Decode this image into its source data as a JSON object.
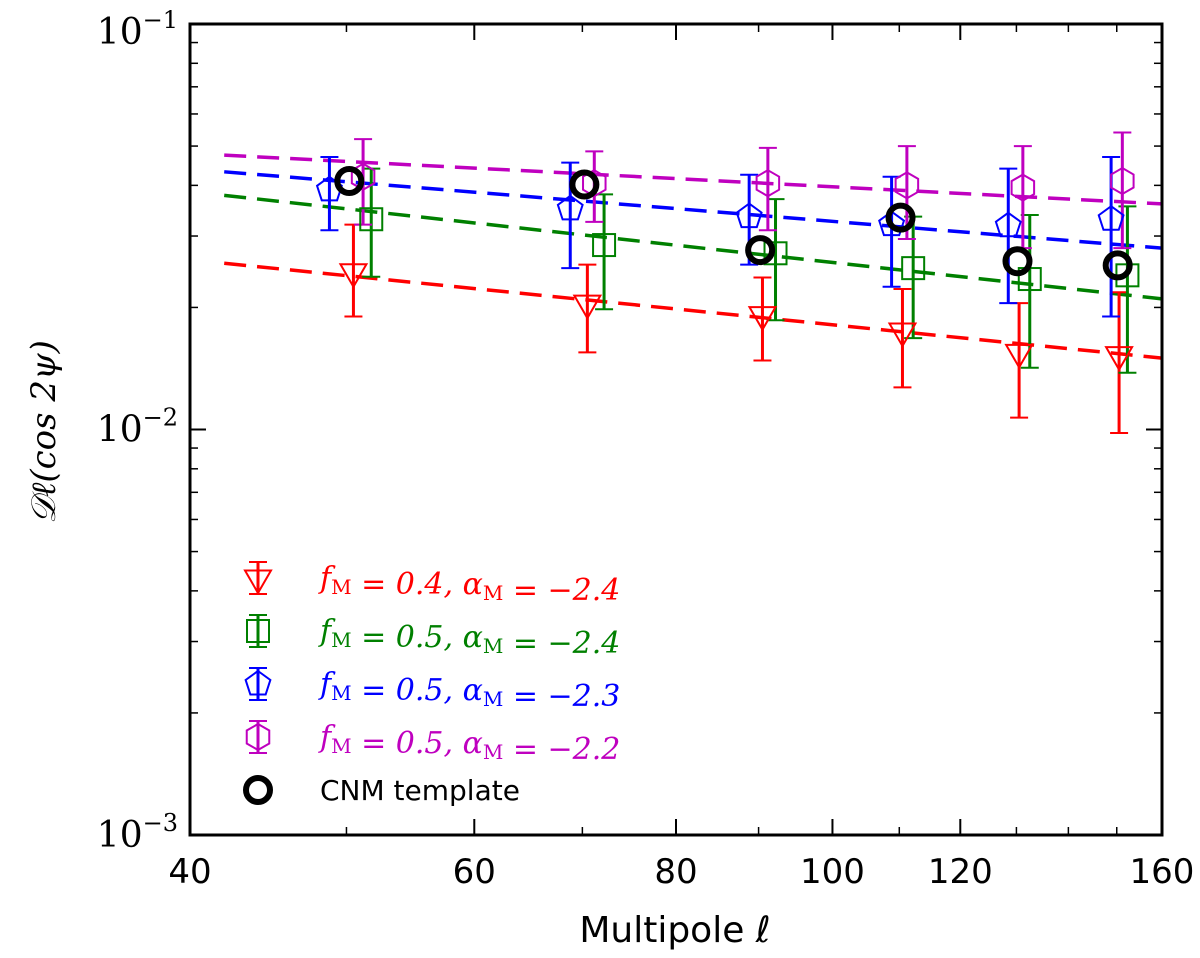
{
  "chart_data": {
    "type": "scatter",
    "title": "",
    "xlabel": "Multipole ℓ",
    "ylabel": "𝒟ℓ(cos 2ψ)",
    "xlim": [
      40,
      160
    ],
    "ylim": [
      0.001,
      0.1
    ],
    "yscale": "log",
    "xscale": "log",
    "grid": false,
    "legend_position": "lower-left",
    "x_ticks": [
      {
        "value": 40,
        "label": "40"
      },
      {
        "value": 60,
        "label": "60"
      },
      {
        "value": 80,
        "label": "80"
      },
      {
        "value": 100,
        "label": "100"
      },
      {
        "value": 120,
        "label": "120"
      },
      {
        "value": 160,
        "label": "160"
      }
    ],
    "y_ticks": [
      {
        "value": 0.001,
        "base": "10",
        "exp": "−3"
      },
      {
        "value": 0.01,
        "base": "10",
        "exp": "−2"
      },
      {
        "value": 0.1,
        "base": "10",
        "exp": "−1"
      }
    ],
    "series": [
      {
        "name": "f_M = 0.4, α_M = −2.4",
        "legend_main": "f",
        "legend_sub": "M",
        "legend_mid": " = 0.4, α",
        "legend_sub2": "M",
        "legend_end": " = −2.4",
        "color": "#ff0000",
        "marker": "triangle-down",
        "points": [
          {
            "x": 50.5,
            "y": 0.0245,
            "lo": 0.019,
            "hi": 0.032
          },
          {
            "x": 70.5,
            "y": 0.0205,
            "lo": 0.0155,
            "hi": 0.0255
          },
          {
            "x": 90.5,
            "y": 0.0192,
            "lo": 0.0148,
            "hi": 0.0237
          },
          {
            "x": 110.5,
            "y": 0.0175,
            "lo": 0.0127,
            "hi": 0.0222
          },
          {
            "x": 130.5,
            "y": 0.0155,
            "lo": 0.0107,
            "hi": 0.0205
          },
          {
            "x": 150.5,
            "y": 0.0153,
            "lo": 0.0098,
            "hi": 0.0218
          }
        ],
        "fit": {
          "x": [
            42,
            160
          ],
          "y": [
            0.0257,
            0.015
          ]
        }
      },
      {
        "name": "f_M = 0.5, α_M = −2.4",
        "legend_main": "f",
        "legend_sub": "M",
        "legend_mid": " = 0.5, α",
        "legend_sub2": "M",
        "legend_end": " = −2.4",
        "color": "#008000",
        "marker": "square",
        "points": [
          {
            "x": 51.8,
            "y": 0.033,
            "lo": 0.0238,
            "hi": 0.044
          },
          {
            "x": 72.2,
            "y": 0.0285,
            "lo": 0.0198,
            "hi": 0.038
          },
          {
            "x": 92.2,
            "y": 0.0272,
            "lo": 0.0186,
            "hi": 0.037
          },
          {
            "x": 112.2,
            "y": 0.025,
            "lo": 0.0168,
            "hi": 0.0335
          },
          {
            "x": 132.5,
            "y": 0.0235,
            "lo": 0.0142,
            "hi": 0.0338
          },
          {
            "x": 152.3,
            "y": 0.024,
            "lo": 0.0138,
            "hi": 0.0355
          }
        ],
        "fit": {
          "x": [
            42,
            160
          ],
          "y": [
            0.0378,
            0.021
          ]
        }
      },
      {
        "name": "f_M = 0.5, α_M = −2.3",
        "legend_main": "f",
        "legend_sub": "M",
        "legend_mid": " = 0.5, α",
        "legend_sub2": "M",
        "legend_end": " = −2.3",
        "color": "#0000ff",
        "marker": "pentagon",
        "points": [
          {
            "x": 48.8,
            "y": 0.039,
            "lo": 0.031,
            "hi": 0.047
          },
          {
            "x": 68.8,
            "y": 0.035,
            "lo": 0.025,
            "hi": 0.0455
          },
          {
            "x": 88.8,
            "y": 0.0335,
            "lo": 0.0255,
            "hi": 0.0425
          },
          {
            "x": 108.8,
            "y": 0.032,
            "lo": 0.0225,
            "hi": 0.042
          },
          {
            "x": 128.5,
            "y": 0.0318,
            "lo": 0.0205,
            "hi": 0.044
          },
          {
            "x": 148.8,
            "y": 0.033,
            "lo": 0.019,
            "hi": 0.047
          }
        ],
        "fit": {
          "x": [
            42,
            160
          ],
          "y": [
            0.0432,
            0.028
          ]
        }
      },
      {
        "name": "f_M = 0.5, α_M = −2.2",
        "legend_main": "f",
        "legend_sub": "M",
        "legend_mid": " = 0.5, α",
        "legend_sub2": "M",
        "legend_end": " = −2.2",
        "color": "#bf00bf",
        "marker": "hexagon",
        "points": [
          {
            "x": 51.2,
            "y": 0.042,
            "lo": 0.032,
            "hi": 0.052
          },
          {
            "x": 71.2,
            "y": 0.0405,
            "lo": 0.0325,
            "hi": 0.0485
          },
          {
            "x": 91.2,
            "y": 0.0405,
            "lo": 0.031,
            "hi": 0.0495
          },
          {
            "x": 111.2,
            "y": 0.04,
            "lo": 0.0295,
            "hi": 0.05
          },
          {
            "x": 131.2,
            "y": 0.0395,
            "lo": 0.028,
            "hi": 0.05
          },
          {
            "x": 151.2,
            "y": 0.041,
            "lo": 0.028,
            "hi": 0.054
          }
        ],
        "fit": {
          "x": [
            42,
            160
          ],
          "y": [
            0.0475,
            0.036
          ]
        }
      },
      {
        "name": "CNM template",
        "legend_plain": "CNM template",
        "color": "#000000",
        "marker": "circle",
        "points": [
          {
            "x": 50.2,
            "y": 0.041
          },
          {
            "x": 70.2,
            "y": 0.0402
          },
          {
            "x": 90.2,
            "y": 0.0277
          },
          {
            "x": 110.2,
            "y": 0.0333
          },
          {
            "x": 130.2,
            "y": 0.026
          },
          {
            "x": 150.2,
            "y": 0.0254
          }
        ]
      }
    ]
  }
}
